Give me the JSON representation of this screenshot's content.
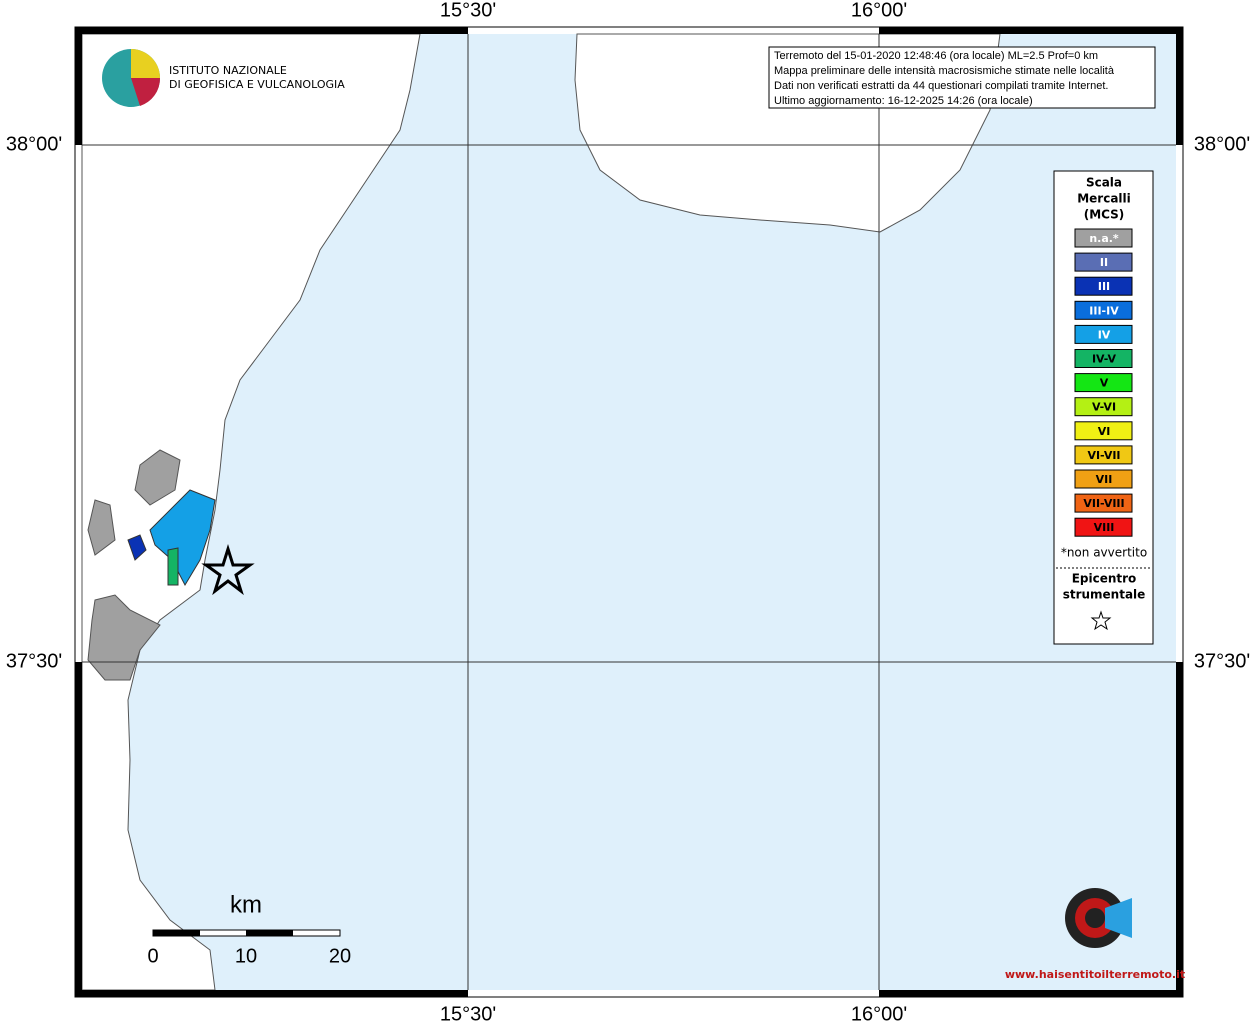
{
  "map": {
    "lon_labels": [
      "15°30'",
      "16°00'"
    ],
    "lat_labels": [
      "38°00'",
      "37°30'"
    ],
    "logo": {
      "line1": "ISTITUTO NAZIONALE",
      "line2": "DI GEOFISICA E VULCANOLOGIA"
    },
    "info": [
      "Terremoto del 15-01-2020 12:48:46 (ora locale) ML=2.5 Prof=0 km",
      "Mappa preliminare delle intensità macrosismiche stimate nelle località",
      "Dati non verificati estratti da 44 questionari compilati tramite Internet.",
      "Ultimo aggiornamento: 16-12-2025 14:26 (ora locale)"
    ],
    "legend": {
      "title": [
        "Scala",
        "Mercalli",
        "(MCS)"
      ],
      "levels": [
        {
          "label": "n.a.*",
          "color": "#a0a0a0"
        },
        {
          "label": "II",
          "color": "#5a6eb4"
        },
        {
          "label": "III",
          "color": "#0a32b4"
        },
        {
          "label": "III-IV",
          "color": "#0a6edc"
        },
        {
          "label": "IV",
          "color": "#14a0e6"
        },
        {
          "label": "IV-V",
          "color": "#14b464"
        },
        {
          "label": "V",
          "color": "#14e614"
        },
        {
          "label": "V-VI",
          "color": "#b4f014"
        },
        {
          "label": "VI",
          "color": "#f0f014"
        },
        {
          "label": "VI-VII",
          "color": "#f0c814"
        },
        {
          "label": "VII",
          "color": "#f0a014"
        },
        {
          "label": "VII-VIII",
          "color": "#f06414"
        },
        {
          "label": "VIII",
          "color": "#f01414"
        }
      ],
      "note": "*non avvertito",
      "epicentre": [
        "Epicentro",
        "strumentale"
      ]
    },
    "scale": {
      "unit": "km",
      "ticks": [
        "0",
        "10",
        "20"
      ]
    },
    "site": "www.haisentitoilterremoto.it"
  }
}
